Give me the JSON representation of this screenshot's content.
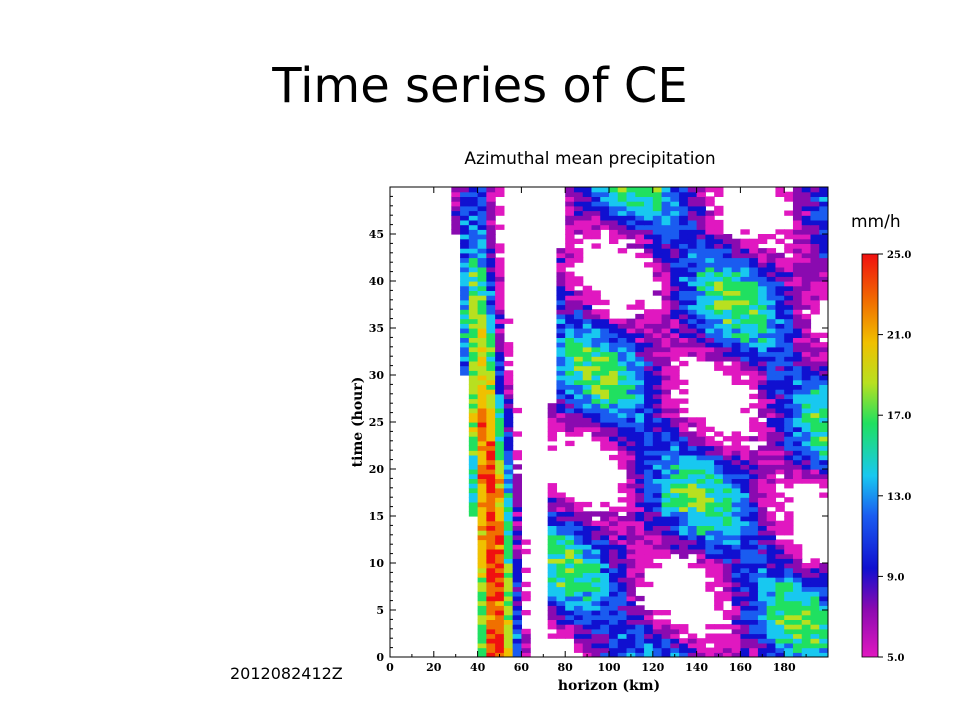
{
  "slide": {
    "title": "Time series of CE",
    "stamp": "2012082412Z"
  },
  "chart_data": {
    "type": "heatmap",
    "title": "Azimuthal mean precipitation",
    "xlabel": "horizon (km)",
    "ylabel": "time (hour)",
    "xlim": [
      0,
      200
    ],
    "ylim": [
      0,
      50
    ],
    "xticks": [
      0,
      20,
      40,
      60,
      80,
      100,
      120,
      140,
      160,
      180
    ],
    "yticks": [
      0,
      5,
      10,
      15,
      20,
      25,
      30,
      35,
      40,
      45
    ],
    "colorbar": {
      "unit": "mm/h",
      "range": [
        5.0,
        25.0
      ],
      "tick_labels": [
        "5.0",
        "9.0",
        "13.0",
        "17.0",
        "21.0",
        "25.0"
      ],
      "tick_values": [
        5,
        9,
        13,
        17,
        21,
        25
      ],
      "colors": [
        "#e018c0",
        "#8a0ab0",
        "#1010d0",
        "#1a5cf0",
        "#18c8f0",
        "#20e060",
        "#b8e020",
        "#f0c000",
        "#f07000",
        "#f01010"
      ]
    },
    "eyewall_center_km": [
      [
        0,
        47
      ],
      [
        5,
        46
      ],
      [
        10,
        45
      ],
      [
        15,
        44
      ],
      [
        20,
        43
      ],
      [
        25,
        41
      ],
      [
        30,
        40
      ],
      [
        35,
        38
      ],
      [
        40,
        37
      ],
      [
        45,
        36
      ],
      [
        50,
        36
      ]
    ],
    "eyewall_peak_mm_h": [
      [
        0,
        24
      ],
      [
        5,
        23
      ],
      [
        10,
        24
      ],
      [
        15,
        24
      ],
      [
        20,
        23
      ],
      [
        25,
        22
      ],
      [
        30,
        19
      ],
      [
        35,
        18
      ],
      [
        40,
        16
      ],
      [
        45,
        13
      ],
      [
        50,
        12
      ]
    ]
  }
}
